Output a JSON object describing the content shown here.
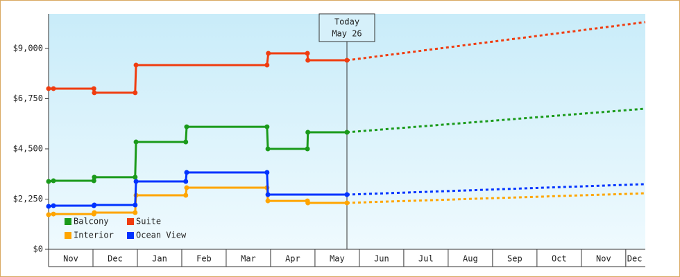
{
  "chart_data": {
    "type": "line",
    "xlim": [
      0,
      13.44
    ],
    "xticks": [
      {
        "value": 0.5,
        "label": "Nov"
      },
      {
        "value": 1.5,
        "label": "Dec"
      },
      {
        "value": 2.5,
        "label": "Jan"
      },
      {
        "value": 3.5,
        "label": "Feb"
      },
      {
        "value": 4.5,
        "label": "Mar"
      },
      {
        "value": 5.5,
        "label": "Apr"
      },
      {
        "value": 6.5,
        "label": "May"
      },
      {
        "value": 7.5,
        "label": "Jun"
      },
      {
        "value": 8.5,
        "label": "Jul"
      },
      {
        "value": 9.5,
        "label": "Aug"
      },
      {
        "value": 10.5,
        "label": "Sep"
      },
      {
        "value": 11.5,
        "label": "Oct"
      },
      {
        "value": 12.5,
        "label": "Nov"
      },
      {
        "value": 13.2,
        "label": "Dec"
      }
    ],
    "ylim": [
      0,
      10550
    ],
    "yticks": [
      {
        "value": 0,
        "label": "$0"
      },
      {
        "value": 2250,
        "label": "$2,250"
      },
      {
        "value": 4500,
        "label": "$4,500"
      },
      {
        "value": 6750,
        "label": "$6,750"
      },
      {
        "value": 9000,
        "label": "$9,000"
      }
    ],
    "today": {
      "x": 6.72,
      "label": [
        "Today",
        "May 26"
      ]
    },
    "series": [
      {
        "name": "Balcony",
        "color": "#1a9a1a",
        "x": [
          0,
          0.11,
          1.02,
          1.03,
          1.95,
          1.97,
          3.09,
          3.11,
          4.92,
          4.94,
          5.83,
          5.84,
          6.72
        ],
        "values": [
          3040,
          3070,
          3070,
          3230,
          3230,
          4810,
          4810,
          5490,
          5490,
          4500,
          4500,
          5245,
          5245
        ],
        "forecast_x": [
          6.72,
          13.44
        ],
        "forecast": [
          5245,
          6300
        ]
      },
      {
        "name": "Suite",
        "color": "#f03c0f",
        "x": [
          0,
          0.11,
          1.02,
          1.03,
          1.95,
          1.97,
          4.92,
          4.95,
          5.83,
          5.84,
          6.72
        ],
        "values": [
          7200,
          7200,
          7200,
          7015,
          7015,
          8255,
          8255,
          8780,
          8780,
          8470,
          8470
        ],
        "forecast_x": [
          6.72,
          13.44
        ],
        "forecast": [
          8470,
          10180
        ]
      },
      {
        "name": "Interior",
        "color": "#ffa500",
        "x": [
          0,
          0.11,
          1.02,
          1.03,
          1.95,
          1.97,
          3.09,
          3.11,
          4.92,
          4.94,
          5.83,
          5.84,
          6.72
        ],
        "values": [
          1550,
          1580,
          1580,
          1645,
          1645,
          2420,
          2420,
          2760,
          2760,
          2170,
          2170,
          2080,
          2080
        ],
        "forecast_x": [
          6.72,
          13.44
        ],
        "forecast": [
          2080,
          2510
        ]
      },
      {
        "name": "Ocean View",
        "color": "#0033ff",
        "x": [
          0,
          0.11,
          1.02,
          1.03,
          1.95,
          1.97,
          3.09,
          3.11,
          4.92,
          4.94,
          6.72
        ],
        "values": [
          1925,
          1955,
          1955,
          1985,
          1985,
          3040,
          3040,
          3445,
          3445,
          2450,
          2450
        ],
        "forecast_x": [
          6.72,
          13.44
        ],
        "forecast": [
          2450,
          2920
        ]
      }
    ]
  }
}
